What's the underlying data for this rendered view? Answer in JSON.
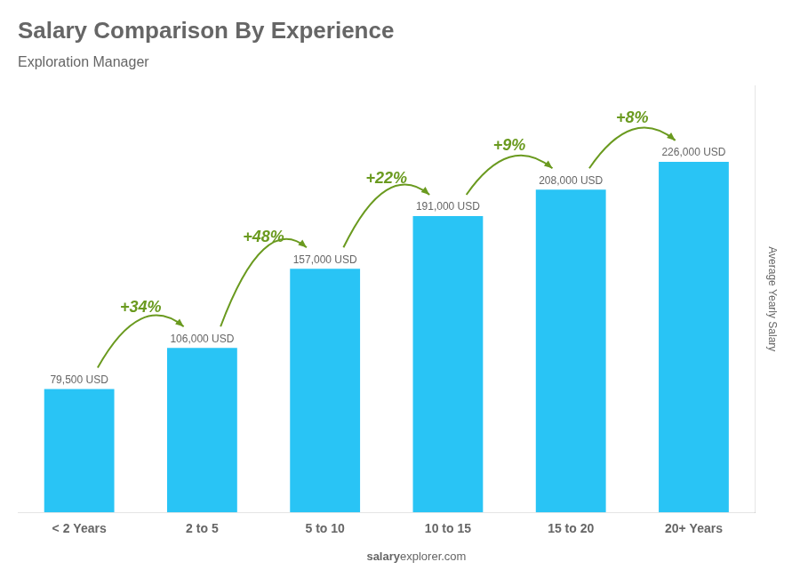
{
  "chart_data": {
    "type": "bar",
    "title": "Salary Comparison By Experience",
    "subtitle": "Exploration Manager",
    "categories": [
      "< 2 Years",
      "2 to 5",
      "5 to 10",
      "10 to 15",
      "15 to 20",
      "20+ Years"
    ],
    "values": [
      79500,
      106000,
      157000,
      191000,
      208000,
      226000
    ],
    "value_labels": [
      "79,500 USD",
      "106,000 USD",
      "157,000 USD",
      "191,000 USD",
      "208,000 USD",
      "226,000 USD"
    ],
    "data_labels": true,
    "color": "#29c4f5",
    "ylabel": "Average Yearly Salary",
    "ylim": [
      0,
      275000
    ],
    "grid": false,
    "tick_labels": "x",
    "annotations": [
      "+34%",
      "+48%",
      "+22%",
      "+9%",
      "+8%"
    ],
    "footer": [
      "salary",
      "explorer.com"
    ]
  }
}
